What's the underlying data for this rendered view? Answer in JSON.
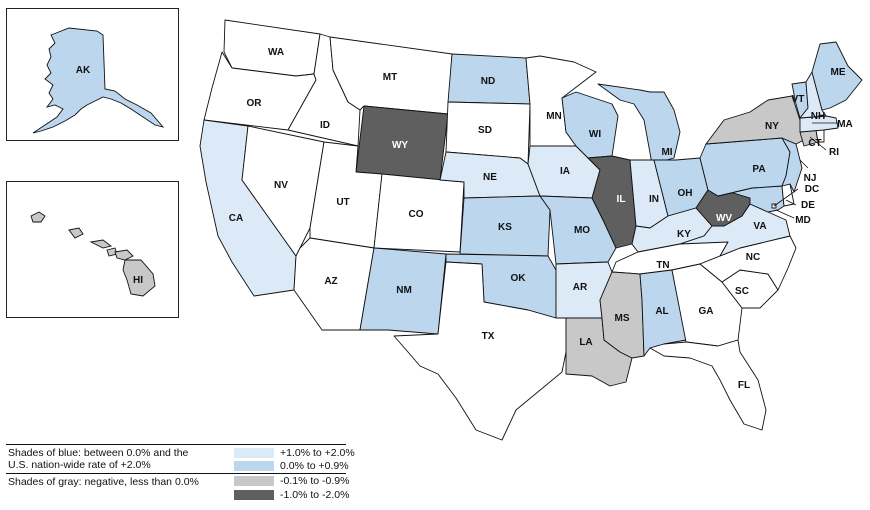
{
  "colors": {
    "light_blue": "#dce9f6",
    "blue": "#bcd6ee",
    "light_gray": "#c8c8c8",
    "dark_gray": "#5f5f5f",
    "white": "#ffffff",
    "border": "#111111"
  },
  "legend": {
    "blue_description_line1": "Shades of blue: between 0.0% and the",
    "blue_description_line2": "U.S. nation-wide rate of +2.0%",
    "gray_description": "Shades of gray: negative, less than 0.0%",
    "items": [
      {
        "label": "+1.0% to +2.0%",
        "color": "#dce9f6"
      },
      {
        "label": "0.0% to +0.9%",
        "color": "#bcd6ee"
      },
      {
        "label": "-0.1% to -0.9%",
        "color": "#c8c8c8"
      },
      {
        "label": "-1.0% to -2.0%",
        "color": "#5f5f5f"
      }
    ]
  },
  "states": [
    {
      "abbr": "WA",
      "category": "none"
    },
    {
      "abbr": "OR",
      "category": "none"
    },
    {
      "abbr": "CA",
      "category": "light_blue"
    },
    {
      "abbr": "NV",
      "category": "none"
    },
    {
      "abbr": "ID",
      "category": "none"
    },
    {
      "abbr": "MT",
      "category": "none"
    },
    {
      "abbr": "WY",
      "category": "dark_gray"
    },
    {
      "abbr": "UT",
      "category": "none"
    },
    {
      "abbr": "AZ",
      "category": "none"
    },
    {
      "abbr": "CO",
      "category": "none"
    },
    {
      "abbr": "NM",
      "category": "blue"
    },
    {
      "abbr": "ND",
      "category": "blue"
    },
    {
      "abbr": "SD",
      "category": "none"
    },
    {
      "abbr": "NE",
      "category": "light_blue"
    },
    {
      "abbr": "KS",
      "category": "blue"
    },
    {
      "abbr": "OK",
      "category": "blue"
    },
    {
      "abbr": "TX",
      "category": "none"
    },
    {
      "abbr": "MN",
      "category": "none"
    },
    {
      "abbr": "IA",
      "category": "light_blue"
    },
    {
      "abbr": "MO",
      "category": "blue"
    },
    {
      "abbr": "AR",
      "category": "light_blue"
    },
    {
      "abbr": "LA",
      "category": "light_gray"
    },
    {
      "abbr": "WI",
      "category": "blue"
    },
    {
      "abbr": "IL",
      "category": "dark_gray"
    },
    {
      "abbr": "MI",
      "category": "blue"
    },
    {
      "abbr": "IN",
      "category": "light_blue"
    },
    {
      "abbr": "OH",
      "category": "blue"
    },
    {
      "abbr": "KY",
      "category": "light_blue"
    },
    {
      "abbr": "TN",
      "category": "none"
    },
    {
      "abbr": "MS",
      "category": "light_gray"
    },
    {
      "abbr": "AL",
      "category": "blue"
    },
    {
      "abbr": "GA",
      "category": "none"
    },
    {
      "abbr": "FL",
      "category": "none"
    },
    {
      "abbr": "SC",
      "category": "none"
    },
    {
      "abbr": "NC",
      "category": "none"
    },
    {
      "abbr": "VA",
      "category": "light_blue"
    },
    {
      "abbr": "WV",
      "category": "dark_gray"
    },
    {
      "abbr": "PA",
      "category": "blue"
    },
    {
      "abbr": "NY",
      "category": "light_gray"
    },
    {
      "abbr": "VT",
      "category": "blue"
    },
    {
      "abbr": "NH",
      "category": "light_blue"
    },
    {
      "abbr": "ME",
      "category": "blue"
    },
    {
      "abbr": "MA",
      "category": "light_blue"
    },
    {
      "abbr": "CT",
      "category": "light_gray"
    },
    {
      "abbr": "RI",
      "category": "none"
    },
    {
      "abbr": "NJ",
      "category": "blue"
    },
    {
      "abbr": "DE",
      "category": "none"
    },
    {
      "abbr": "MD",
      "category": "blue"
    },
    {
      "abbr": "DC",
      "category": "none"
    },
    {
      "abbr": "AK",
      "category": "blue"
    },
    {
      "abbr": "HI",
      "category": "light_gray"
    }
  ]
}
